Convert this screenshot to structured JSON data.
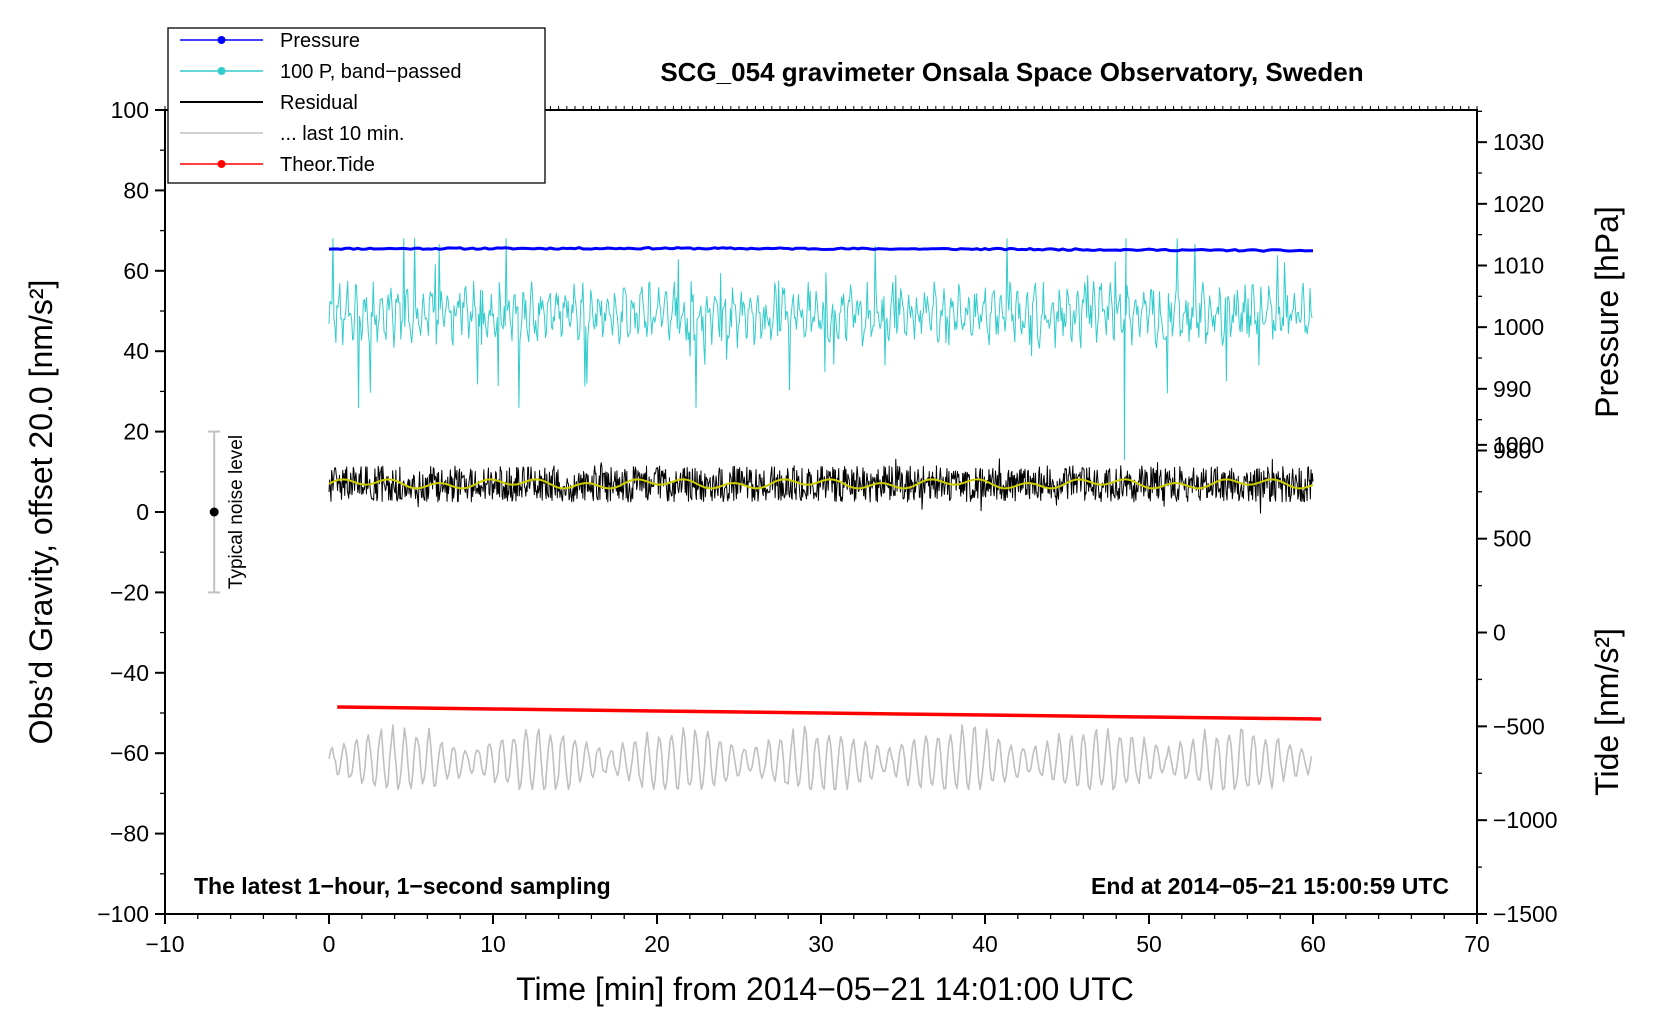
{
  "chart_data": {
    "type": "line",
    "title": "SCG_054 gravimeter Onsala Space Observatory, Sweden",
    "xlabel": "Time [min] from 2014−05−21 14:01:00 UTC",
    "ylabel_left": "Obs’d Gravity, offset 20.0 [nm/s²]",
    "ylabel_right_top": "Pressure [hPa]",
    "ylabel_right_bottom": "Tide [nm/s²]",
    "footer_left": "The latest 1−hour, 1−second sampling",
    "footer_right": "End at 2014−05−21 15:00:59 UTC",
    "xlim": [
      -10,
      70
    ],
    "ylim": [
      -100,
      100
    ],
    "x_ticks": [
      -10,
      0,
      10,
      20,
      30,
      40,
      50,
      60,
      70
    ],
    "x_tick_labels": [
      "−10",
      "0",
      "10",
      "20",
      "30",
      "40",
      "50",
      "60",
      "70"
    ],
    "y_ticks": [
      100,
      80,
      60,
      40,
      20,
      0,
      -20,
      -40,
      -60,
      -80,
      -100
    ],
    "y_tick_labels": [
      "100",
      "80",
      "60",
      "40",
      "20",
      "0",
      "−20",
      "−40",
      "−60",
      "−80",
      "−100"
    ],
    "pressure_ticks": [
      1030,
      1020,
      1010,
      1000,
      990,
      980
    ],
    "pressure_tick_labels": [
      "1030",
      "1020",
      "1010",
      "1000",
      "990",
      "980"
    ],
    "pressure_map": {
      "value_a": 1030,
      "y_a": 92.0,
      "value_b": 980,
      "y_b": 15.3
    },
    "tide_ticks": [
      1000,
      500,
      0,
      -500,
      -1000,
      -1500
    ],
    "tide_tick_labels": [
      "1000",
      "500",
      "0",
      "−500",
      "−1000",
      "−1500"
    ],
    "tide_map": {
      "value_a": 1000,
      "y_a": 16.7,
      "value_b": -1500,
      "y_b": -100
    },
    "legend_position": "top-left",
    "legend": [
      {
        "label": "Pressure",
        "color": "#0000ff",
        "marker": true
      },
      {
        "label": "100 P, band−passed",
        "color": "#33cccc",
        "marker": true
      },
      {
        "label": "Residual",
        "color": "#000000",
        "marker": false
      },
      {
        "label": "... last 10 min.",
        "color": "#c0c0c0",
        "marker": false
      },
      {
        "label": "Theor.Tide",
        "color": "#ff0000",
        "marker": true
      }
    ],
    "noise_bar": {
      "label": "Typical noise level",
      "x": -7,
      "center": 0,
      "low": -20,
      "high": 20
    },
    "series": [
      {
        "name": "Pressure",
        "color": "#0000ff",
        "x_range": [
          0,
          60
        ],
        "approx_level": [
          [
            0,
            65.5
          ],
          [
            20,
            65.6
          ],
          [
            40,
            65.4
          ],
          [
            60,
            65.0
          ]
        ],
        "noise_amp": 0.4
      },
      {
        "name": "100 P, band−passed",
        "color": "#33cccc",
        "x_range": [
          0,
          60
        ],
        "approx_center": 49,
        "approx_min": 13,
        "approx_max": 70
      },
      {
        "name": "Residual",
        "color": "#000000",
        "x_range": [
          0,
          60
        ],
        "approx_center": 7,
        "approx_min": -1,
        "approx_max": 15
      },
      {
        "name": "smoothed residual",
        "color": "#cccc00",
        "x_range": [
          0,
          60
        ],
        "approx_center": 7
      },
      {
        "name": "... last 10 min.",
        "color": "#c0c0c0",
        "x_range": [
          0,
          60
        ],
        "approx_center": -62,
        "approx_min": -69,
        "approx_max": -53
      },
      {
        "name": "Theor.Tide",
        "color": "#ff0000",
        "x": [
          0.5,
          10,
          20,
          30,
          40,
          50,
          60.5
        ],
        "y": [
          -48.5,
          -49.0,
          -49.5,
          -50.0,
          -50.5,
          -51.0,
          -51.5
        ]
      }
    ]
  }
}
